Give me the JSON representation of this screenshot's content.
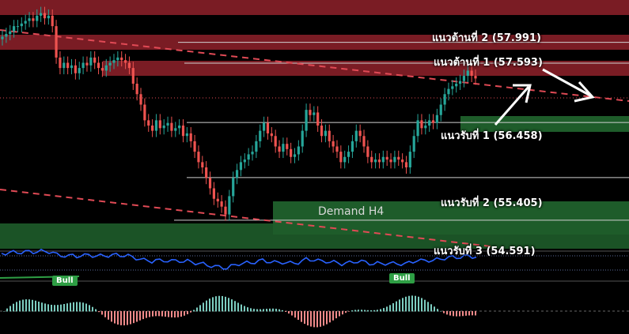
{
  "levels": {
    "r2": "แนวต้านที่ 2 (57.991)",
    "r1": "แนวต้านที่ 1 (57.593)",
    "s1": "แนวรับที่ 1 (56.458)",
    "s2": "แนวรับที่ 2 (55.405)",
    "s3": "แนวรับที่ 3 (54.591)"
  },
  "zone_label": "Demand H4",
  "badges": [
    "Bull",
    "Bull"
  ],
  "colors": {
    "up": "#26a69a",
    "down": "#ef5350",
    "resistance_zone": "#7a1c24",
    "support_zone": "#1e5c2a",
    "trendline": "#e04a55",
    "oscillator": "#2962ff",
    "hist_pos": "#7ccdc0",
    "hist_neg": "#f08a8a"
  },
  "chart_data": {
    "type": "candlestick",
    "price_levels": {
      "R2": 57.991,
      "R1": 57.593,
      "S1": 56.458,
      "S2": 55.405,
      "S3": 54.591
    },
    "ylim": [
      54.0,
      58.8
    ],
    "close": [
      58.1,
      58.15,
      58.2,
      58.3,
      58.3,
      58.35,
      58.4,
      58.45,
      58.4,
      58.5,
      58.55,
      58.45,
      58.5,
      58.3,
      57.7,
      57.5,
      57.6,
      57.5,
      57.55,
      57.4,
      57.5,
      57.6,
      57.55,
      57.7,
      57.6,
      57.5,
      57.45,
      57.55,
      57.6,
      57.65,
      57.7,
      57.65,
      57.6,
      57.5,
      57.2,
      57.0,
      56.8,
      56.5,
      56.4,
      56.3,
      56.5,
      56.35,
      56.4,
      56.45,
      56.3,
      56.35,
      56.4,
      56.2,
      56.25,
      56.1,
      55.9,
      55.7,
      55.6,
      55.4,
      55.2,
      55.0,
      54.95,
      54.85,
      54.7,
      55.05,
      55.4,
      55.55,
      55.7,
      55.75,
      55.85,
      55.9,
      56.1,
      56.3,
      56.45,
      56.25,
      56.2,
      56.0,
      55.9,
      56.05,
      55.95,
      55.8,
      55.85,
      56.0,
      56.3,
      56.7,
      56.6,
      56.65,
      56.4,
      56.2,
      56.3,
      56.1,
      56.0,
      55.9,
      55.7,
      55.8,
      55.9,
      56.1,
      56.3,
      56.2,
      56.0,
      55.8,
      55.7,
      55.75,
      55.7,
      55.8,
      55.75,
      55.7,
      55.8,
      55.75,
      55.7,
      55.6,
      55.9,
      56.2,
      56.5,
      56.35,
      56.4,
      56.5,
      56.45,
      56.6,
      56.8,
      57.0,
      57.1,
      57.15,
      57.2,
      57.25,
      57.35,
      57.45,
      57.35,
      57.3
    ],
    "bands_oscillator": "RSI-style line with Bull labels",
    "histogram": "MACD-style histogram"
  }
}
